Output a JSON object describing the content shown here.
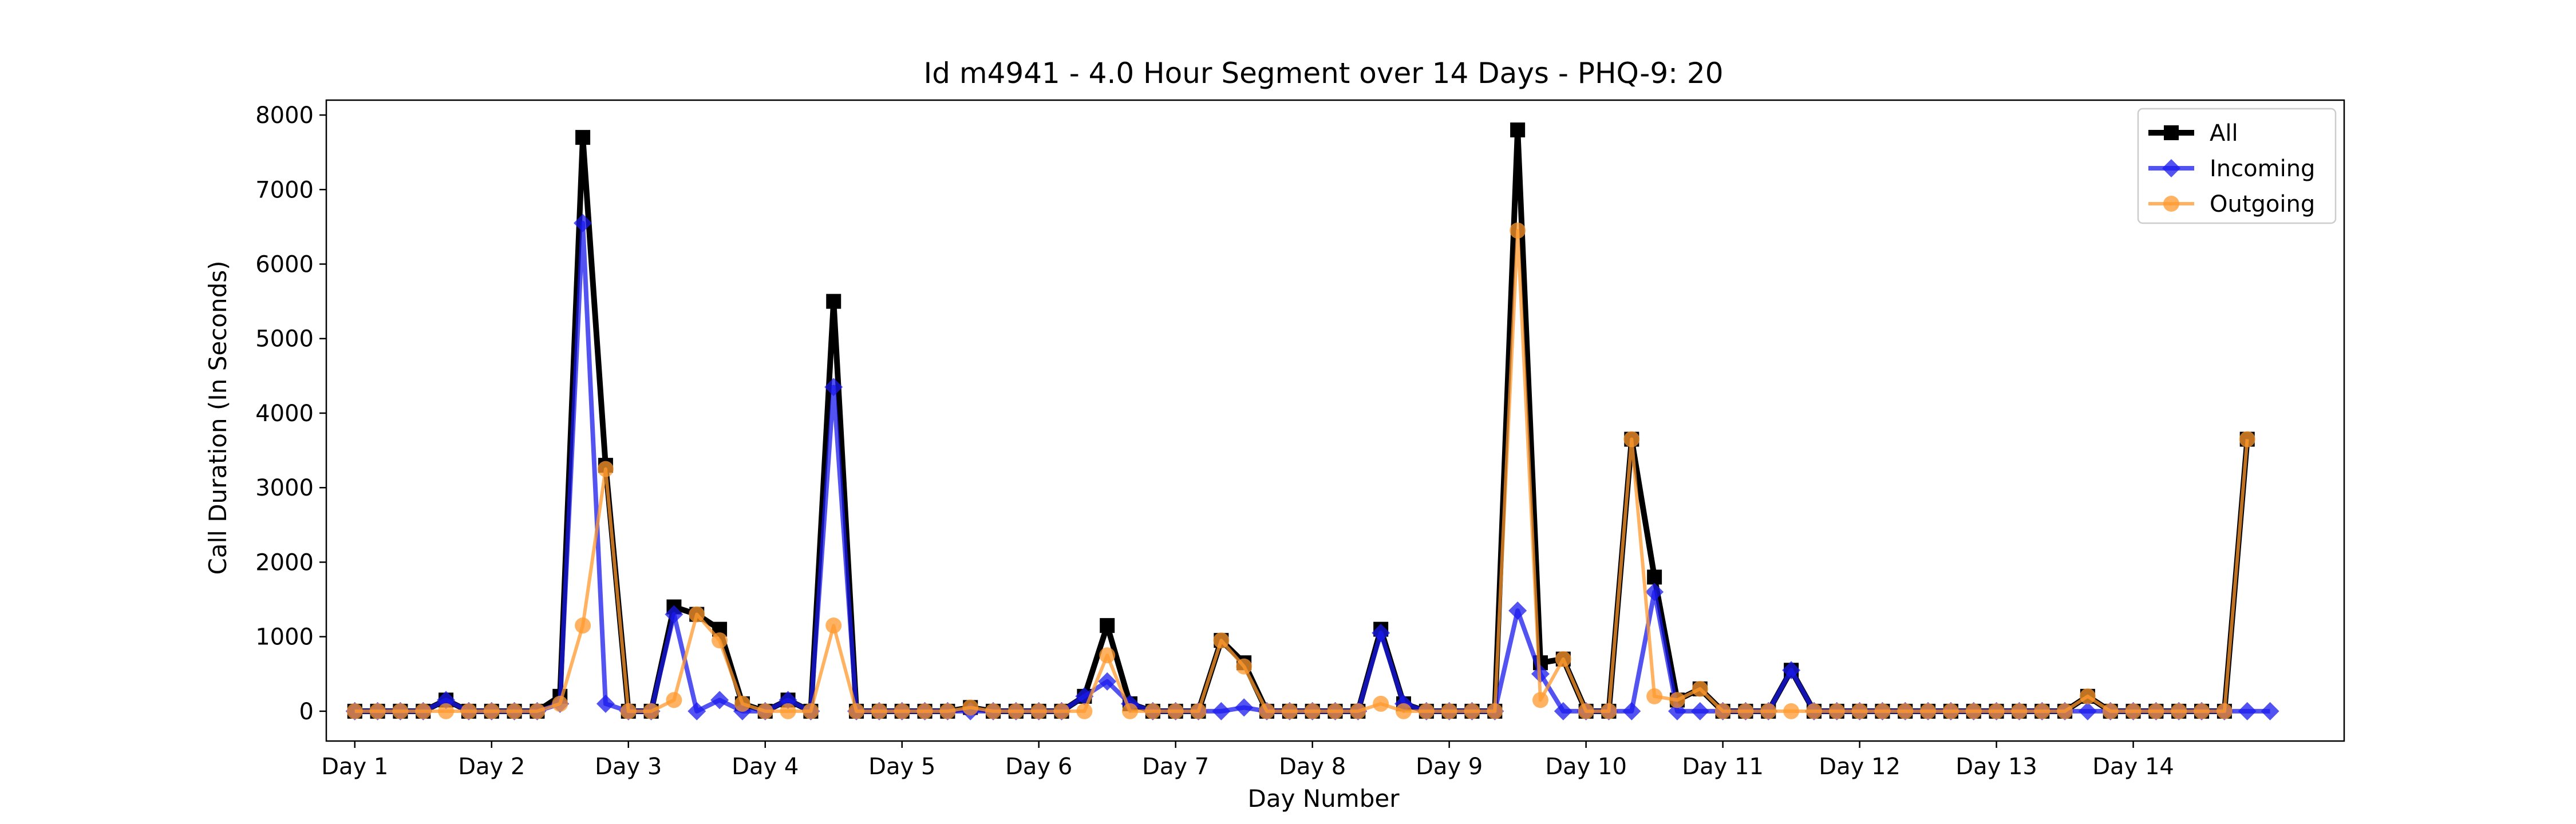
{
  "chart_data": {
    "type": "line",
    "title": "Id m4941 - 4.0 Hour Segment over 14 Days - PHQ-9: 20",
    "xlabel": "Day Number",
    "ylabel": "Call Duration (In Seconds)",
    "xlim": [
      -1.25,
      87.25
    ],
    "ylim": [
      -400,
      8200
    ],
    "yticks": [
      0,
      1000,
      2000,
      3000,
      4000,
      5000,
      6000,
      7000,
      8000
    ],
    "xticks": [
      0,
      6,
      12,
      18,
      24,
      30,
      36,
      42,
      48,
      54,
      60,
      66,
      72,
      78
    ],
    "xtick_labels": [
      "Day 1",
      "Day 2",
      "Day 3",
      "Day 4",
      "Day 5",
      "Day 6",
      "Day 7",
      "Day 8",
      "Day 9",
      "Day 10",
      "Day 11",
      "Day 12",
      "Day 13",
      "Day 14"
    ],
    "grid": false,
    "legend_position": "top-right",
    "series": [
      {
        "name": "All",
        "color": "#000000",
        "marker": "square",
        "values": [
          0,
          0,
          0,
          0,
          150,
          0,
          0,
          0,
          0,
          200,
          7700,
          3300,
          0,
          0,
          1400,
          1300,
          1100,
          100,
          0,
          150,
          0,
          5500,
          0,
          0,
          0,
          0,
          0,
          50,
          0,
          0,
          0,
          0,
          200,
          1150,
          100,
          0,
          0,
          0,
          950,
          650,
          0,
          0,
          0,
          0,
          0,
          1100,
          100,
          0,
          0,
          0,
          0,
          7800,
          650,
          700,
          0,
          0,
          3650,
          1800,
          150,
          300,
          0,
          0,
          0,
          550,
          0,
          0,
          0,
          0,
          0,
          0,
          0,
          0,
          0,
          0,
          0,
          0,
          200,
          0,
          0,
          0,
          0,
          0,
          0,
          3650
        ]
      },
      {
        "name": "Incoming",
        "color": "#1a1aee",
        "marker": "diamond",
        "values": [
          0,
          0,
          0,
          0,
          150,
          0,
          0,
          0,
          0,
          100,
          6550,
          100,
          0,
          0,
          1300,
          0,
          150,
          0,
          0,
          150,
          0,
          4350,
          0,
          0,
          0,
          0,
          0,
          0,
          0,
          0,
          0,
          0,
          200,
          400,
          100,
          0,
          0,
          0,
          0,
          50,
          0,
          0,
          0,
          0,
          0,
          1050,
          100,
          0,
          0,
          0,
          0,
          1350,
          500,
          0,
          0,
          0,
          0,
          1600,
          0,
          0,
          0,
          0,
          0,
          550,
          0,
          0,
          0,
          0,
          0,
          0,
          0,
          0,
          0,
          0,
          0,
          0,
          0,
          0,
          0,
          0,
          0,
          0,
          0,
          0,
          0
        ]
      },
      {
        "name": "Outgoing",
        "color": "#ff9a2e",
        "marker": "circle",
        "values": [
          0,
          0,
          0,
          0,
          0,
          0,
          0,
          0,
          0,
          100,
          1150,
          3250,
          0,
          0,
          150,
          1300,
          950,
          100,
          0,
          0,
          0,
          1150,
          0,
          0,
          0,
          0,
          0,
          50,
          0,
          0,
          0,
          0,
          0,
          750,
          0,
          0,
          0,
          0,
          950,
          600,
          0,
          0,
          0,
          0,
          0,
          100,
          0,
          0,
          0,
          0,
          0,
          6450,
          150,
          700,
          0,
          0,
          3650,
          200,
          150,
          300,
          0,
          0,
          0,
          0,
          0,
          0,
          0,
          0,
          0,
          0,
          0,
          0,
          0,
          0,
          0,
          0,
          200,
          0,
          0,
          0,
          0,
          0,
          0,
          3650
        ]
      }
    ]
  }
}
